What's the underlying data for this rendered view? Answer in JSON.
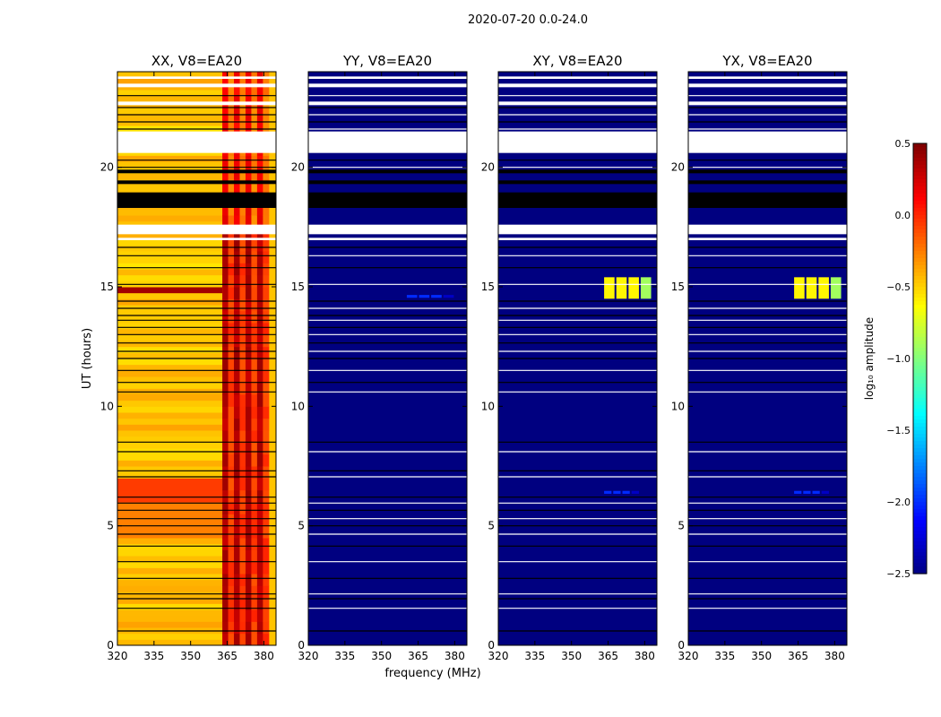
{
  "figure_title": "2020-07-20 0.0-24.0",
  "xlabel": "frequency (MHz)",
  "ylabel": "UT (hours)",
  "chart_data": {
    "type": "heatmap",
    "title": "2020-07-20 0.0-24.0",
    "xlabel": "frequency (MHz)",
    "ylabel": "UT (hours)",
    "xlim": [
      320,
      385
    ],
    "ylim": [
      0,
      24
    ],
    "xticks": [
      320,
      335,
      350,
      365,
      380
    ],
    "yticks": [
      0,
      5,
      10,
      15,
      20
    ],
    "colormap": "jet",
    "colorbar": {
      "label": "log10 amplitude",
      "label_html": "log₁₀ amplitude",
      "range": [
        -2.5,
        0.5
      ],
      "ticks": [
        0.5,
        0.0,
        -0.5,
        -1.0,
        -1.5,
        -2.0,
        -2.5
      ],
      "tick_labels": [
        "0.5",
        "0.0",
        "−0.5",
        "−1.0",
        "−1.5",
        "−2.0",
        "−2.5"
      ]
    },
    "panels": [
      {
        "name": "xx",
        "title": "XX, V8=EA20",
        "base_value": -0.45,
        "strong_band_value": 0.3,
        "strong_freq_range": [
          363,
          382
        ]
      },
      {
        "name": "yy",
        "title": "YY, V8=EA20",
        "base_value": -2.5,
        "features": [
          {
            "ut": 14.6,
            "freq_range": [
              360,
              380
            ],
            "value": -2.0
          }
        ]
      },
      {
        "name": "xy",
        "title": "XY, V8=EA20",
        "base_value": -2.5,
        "features": [
          {
            "ut": [
              14.5,
              15.4
            ],
            "freq_range": [
              363,
              383
            ],
            "value": -0.6
          },
          {
            "ut": 6.4,
            "freq_range": [
              363,
              378
            ],
            "value": -2.0
          }
        ]
      },
      {
        "name": "yx",
        "title": "YX, V8=EA20",
        "base_value": -2.5,
        "features": [
          {
            "ut": [
              14.5,
              15.4
            ],
            "freq_range": [
              363,
              383
            ],
            "value": -0.6
          },
          {
            "ut": 6.4,
            "freq_range": [
              363,
              378
            ],
            "value": -2.0
          }
        ]
      }
    ],
    "blanked_ut_ranges_white": [
      [
        20.6,
        21.5
      ],
      [
        17.2,
        17.6
      ],
      [
        16.95,
        17.05
      ],
      [
        22.6,
        22.75
      ],
      [
        23.35,
        23.5
      ],
      [
        23.7,
        23.8
      ]
    ],
    "blanked_ut_ranges_black": [
      [
        18.3,
        18.95
      ],
      [
        19.3,
        19.45
      ],
      [
        19.75,
        19.9
      ]
    ],
    "flag_lines_ut": [
      0.6,
      1.55,
      1.95,
      2.15,
      2.8,
      3.5,
      4.15,
      4.65,
      5.0,
      5.3,
      5.65,
      5.95,
      6.2,
      7.05,
      7.3,
      8.1,
      8.5,
      10.6,
      11.0,
      11.5,
      12.0,
      12.3,
      12.65,
      13.0,
      13.3,
      13.6,
      13.8,
      14.1,
      14.4,
      15.1,
      15.8,
      16.3,
      16.65,
      20.0,
      20.3,
      21.6,
      21.9,
      22.2,
      22.5,
      23.0
    ]
  }
}
